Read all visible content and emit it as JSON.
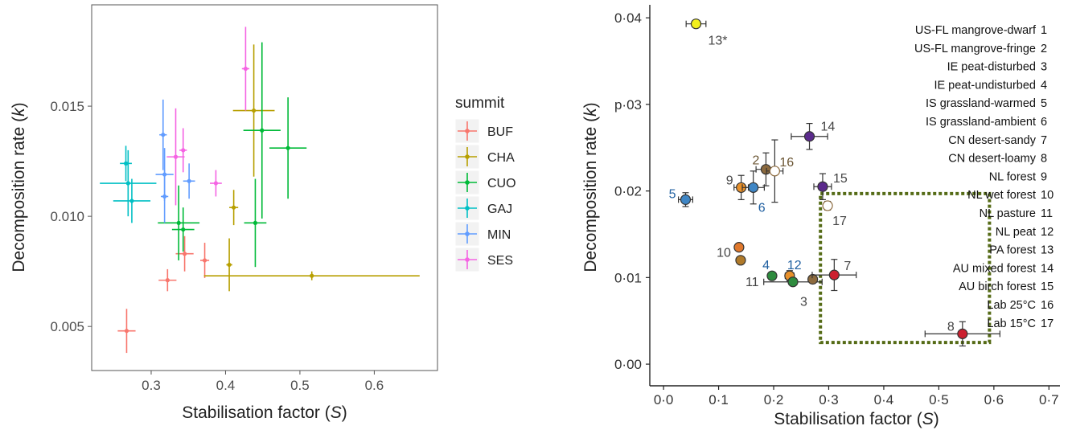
{
  "chart_data": [
    {
      "type": "scatter",
      "xlabel": "Stabilisation factor (S)",
      "ylabel": "Decomposition rate (k)",
      "xlim": [
        0.22,
        0.685
      ],
      "ylim": [
        0.003,
        0.0196
      ],
      "xticks": [
        "0.3",
        "0.4",
        "0.5",
        "0.6"
      ],
      "yticks": [
        "0.005",
        "0.010",
        "0.015"
      ],
      "legend_title": "summit",
      "legend_position": "right",
      "grid": false,
      "series": [
        {
          "name": "BUF",
          "color": "#F8766D",
          "points": [
            {
              "x": 0.267,
              "y": 0.0048,
              "xerr": 0.012,
              "yerr": 0.001
            },
            {
              "x": 0.322,
              "y": 0.0071,
              "xerr": 0.012,
              "yerr": 0.0005
            },
            {
              "x": 0.345,
              "y": 0.0083,
              "xerr": 0.012,
              "yerr": 0.0008
            },
            {
              "x": 0.372,
              "y": 0.008,
              "xerr": 0.006,
              "yerr": 0.0008
            }
          ]
        },
        {
          "name": "CHA",
          "color": "#B79F00",
          "points": [
            {
              "x": 0.405,
              "y": 0.0078,
              "xerr": 0.004,
              "yerr": 0.0012
            },
            {
              "x": 0.516,
              "y": 0.0073,
              "xerr": 0.145,
              "yerr": 0.0002
            },
            {
              "x": 0.411,
              "y": 0.0104,
              "xerr": 0.006,
              "yerr": 0.0008
            },
            {
              "x": 0.438,
              "y": 0.0148,
              "xerr": 0.028,
              "yerr": 0.003
            }
          ]
        },
        {
          "name": "CUO",
          "color": "#00BA38",
          "points": [
            {
              "x": 0.337,
              "y": 0.0097,
              "xerr": 0.028,
              "yerr": 0.0017
            },
            {
              "x": 0.343,
              "y": 0.0094,
              "xerr": 0.015,
              "yerr": 0.001
            },
            {
              "x": 0.44,
              "y": 0.0097,
              "xerr": 0.015,
              "yerr": 0.002
            },
            {
              "x": 0.449,
              "y": 0.0139,
              "xerr": 0.025,
              "yerr": 0.004
            },
            {
              "x": 0.484,
              "y": 0.0131,
              "xerr": 0.025,
              "yerr": 0.0023
            }
          ]
        },
        {
          "name": "GAJ",
          "color": "#00BFC4",
          "points": [
            {
              "x": 0.266,
              "y": 0.0124,
              "xerr": 0.008,
              "yerr": 0.0008
            },
            {
              "x": 0.269,
              "y": 0.0115,
              "xerr": 0.038,
              "yerr": 0.0015
            },
            {
              "x": 0.274,
              "y": 0.0107,
              "xerr": 0.025,
              "yerr": 0.001
            }
          ]
        },
        {
          "name": "MIN",
          "color": "#619CFF",
          "points": [
            {
              "x": 0.316,
              "y": 0.0137,
              "xerr": 0.005,
              "yerr": 0.0016
            },
            {
              "x": 0.318,
              "y": 0.0119,
              "xerr": 0.012,
              "yerr": 0.0012
            },
            {
              "x": 0.318,
              "y": 0.0109,
              "xerr": 0.005,
              "yerr": 0.0012
            },
            {
              "x": 0.351,
              "y": 0.0116,
              "xerr": 0.008,
              "yerr": 0.0008
            }
          ]
        },
        {
          "name": "SES",
          "color": "#F564E3",
          "points": [
            {
              "x": 0.427,
              "y": 0.0167,
              "xerr": 0.005,
              "yerr": 0.0019
            },
            {
              "x": 0.333,
              "y": 0.0127,
              "xerr": 0.012,
              "yerr": 0.0022
            },
            {
              "x": 0.343,
              "y": 0.013,
              "xerr": 0.005,
              "yerr": 0.001
            },
            {
              "x": 0.387,
              "y": 0.0115,
              "xerr": 0.008,
              "yerr": 0.0006
            }
          ]
        }
      ]
    },
    {
      "type": "scatter",
      "xlabel": "Stabilisation factor (S)",
      "ylabel": "Decomposition rate (k)",
      "xlim": [
        -0.025,
        0.72
      ],
      "ylim": [
        -0.0025,
        0.0415
      ],
      "xticks": [
        "0·0",
        "0·1",
        "0·2",
        "0·3",
        "0·4",
        "0·5",
        "0·6",
        "0·7"
      ],
      "yticks": [
        "0·00",
        "0·01",
        "0·02",
        "p·03",
        "0·04"
      ],
      "grid": false,
      "box": {
        "x0": 0.285,
        "x1": 0.592,
        "y0": 0.0025,
        "y1": 0.0197,
        "style": "dotted",
        "color": "#556B16"
      },
      "points": [
        {
          "id": "1",
          "label": "13*",
          "site": "PA forest",
          "x": 0.059,
          "y": 0.0393,
          "xerr": 0.018,
          "yerr": 0.0,
          "fill": "#f2ef1c"
        },
        {
          "id": "2",
          "label": "5",
          "site": "IS grassland-warmed",
          "x": 0.04,
          "y": 0.019,
          "xerr": 0.013,
          "yerr": 0.0008,
          "fill": "#3f86c5"
        },
        {
          "id": "3",
          "label": "9",
          "site": "NL forest",
          "x": 0.141,
          "y": 0.0204,
          "xerr": 0.013,
          "yerr": 0.0014,
          "fill": "#e8902a"
        },
        {
          "id": "4",
          "label": "6",
          "site": "IS grassland-ambient",
          "x": 0.163,
          "y": 0.0204,
          "xerr": 0.02,
          "yerr": 0.0019,
          "fill": "#3f86c5"
        },
        {
          "id": "5",
          "label": "2",
          "site": "US-FL mangrove-fringe",
          "x": 0.186,
          "y": 0.0225,
          "xerr": 0.018,
          "yerr": 0.0019,
          "fill": "#8c6a3e"
        },
        {
          "id": "6",
          "label": "16",
          "site": "Lab 25°C",
          "x": 0.202,
          "y": 0.0223,
          "xerr": 0.015,
          "yerr": 0.0036,
          "fill": "#ffffff",
          "stroke": "#8c6a3e"
        },
        {
          "id": "7",
          "label": "14",
          "site": "AU mixed forest",
          "x": 0.265,
          "y": 0.0263,
          "xerr": 0.033,
          "yerr": 0.0015,
          "fill": "#5b2a8c"
        },
        {
          "id": "8",
          "label": "15",
          "site": "AU birch forest",
          "x": 0.289,
          "y": 0.0205,
          "xerr": 0.016,
          "yerr": 0.0015,
          "fill": "#5b2a8c"
        },
        {
          "id": "9",
          "label": "17",
          "site": "Lab 15°C",
          "x": 0.298,
          "y": 0.0183,
          "xerr": 0.0,
          "yerr": 0.0005,
          "fill": "#ffffff",
          "stroke": "#8c6a3e"
        },
        {
          "id": "10",
          "label": "10",
          "site": "NL wet forest",
          "x": 0.137,
          "y": 0.0135,
          "xerr": 0.0,
          "yerr": 0.0,
          "fill": "#e0782c"
        },
        {
          "id": "11",
          "label": "11",
          "site": "NL pasture",
          "x": 0.14,
          "y": 0.012,
          "xerr": 0.0,
          "yerr": 0.0,
          "fill": "#b07a2a"
        },
        {
          "id": "12",
          "label": "4",
          "site": "IE peat-undisturbed",
          "x": 0.197,
          "y": 0.0102,
          "xerr": 0.0,
          "yerr": 0.0,
          "fill": "#2e8b3e"
        },
        {
          "id": "13",
          "label": "12",
          "site": "NL peat",
          "x": 0.229,
          "y": 0.0102,
          "xerr": 0.008,
          "yerr": 0.0006,
          "fill": "#e8902a"
        },
        {
          "id": "14",
          "label": "3",
          "site": "IE peat-disturbed",
          "x": 0.235,
          "y": 0.0095,
          "xerr": 0.053,
          "yerr": 0.0,
          "fill": "#2e8b3e"
        },
        {
          "id": "15",
          "label": "",
          "site": "US-FL mangrove-dwarf",
          "x": 0.271,
          "y": 0.0098,
          "xerr": 0.0,
          "yerr": 0.0,
          "fill": "#8c6a3e"
        },
        {
          "id": "16",
          "label": "7",
          "site": "CN desert-sandy",
          "x": 0.31,
          "y": 0.0103,
          "xerr": 0.04,
          "yerr": 0.0018,
          "fill": "#cc2030"
        },
        {
          "id": "17",
          "label": "8",
          "site": "CN desert-loamy",
          "x": 0.543,
          "y": 0.0035,
          "xerr": 0.068,
          "yerr": 0.0014,
          "fill": "#cc2030"
        }
      ],
      "sites": [
        {
          "name": "US-FL mangrove-dwarf",
          "num": "1"
        },
        {
          "name": "US-FL mangrove-fringe",
          "num": "2"
        },
        {
          "name": "IE peat-disturbed",
          "num": "3"
        },
        {
          "name": "IE peat-undisturbed",
          "num": "4"
        },
        {
          "name": "IS grassland-warmed",
          "num": "5"
        },
        {
          "name": "IS grassland-ambient",
          "num": "6"
        },
        {
          "name": "CN desert-sandy",
          "num": "7"
        },
        {
          "name": "CN desert-loamy",
          "num": "8"
        },
        {
          "name": "NL forest",
          "num": "9"
        },
        {
          "name": "NL wet forest",
          "num": "10"
        },
        {
          "name": "NL pasture",
          "num": "11"
        },
        {
          "name": "NL peat",
          "num": "12"
        },
        {
          "name": "PA forest",
          "num": "13"
        },
        {
          "name": "AU mixed forest",
          "num": "14"
        },
        {
          "name": "AU birch forest",
          "num": "15"
        },
        {
          "name": "Lab 25°C",
          "num": "16"
        },
        {
          "name": "Lab 15°C",
          "num": "17"
        }
      ]
    }
  ]
}
